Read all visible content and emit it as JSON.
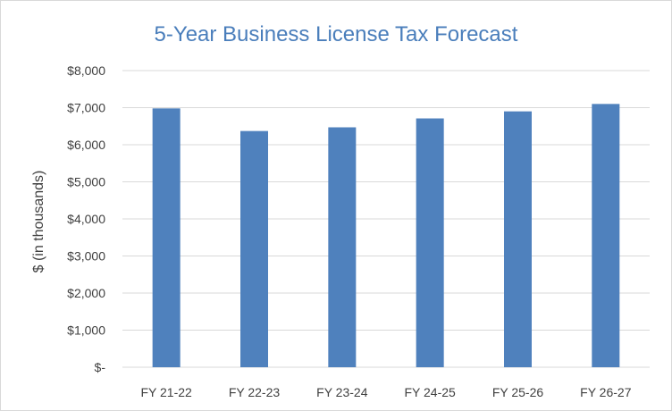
{
  "chart_data": {
    "type": "bar",
    "title": "5-Year Business License Tax Forecast",
    "xlabel": "",
    "ylabel": "$ (in thousands)",
    "categories": [
      "FY 21-22",
      "FY 22-23",
      "FY 23-24",
      "FY 24-25",
      "FY 25-26",
      "FY 26-27"
    ],
    "values": [
      6980,
      6370,
      6470,
      6710,
      6900,
      7100
    ],
    "ylim": [
      0,
      8000
    ],
    "yticks": [
      0,
      1000,
      2000,
      3000,
      4000,
      5000,
      6000,
      7000,
      8000
    ],
    "ytick_labels": [
      "$-",
      "$1,000",
      "$2,000",
      "$3,000",
      "$4,000",
      "$5,000",
      "$6,000",
      "$7,000",
      "$8,000"
    ],
    "grid": true,
    "legend": "none",
    "colors": {
      "bar": "#4f81bd",
      "grid": "#d9d9d9",
      "title": "#4a7ebb"
    }
  }
}
